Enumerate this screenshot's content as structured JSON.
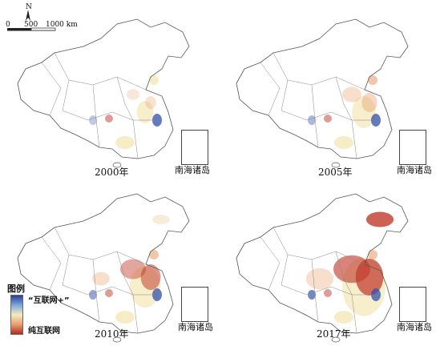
{
  "scale": {
    "north_label": "N",
    "ticks": [
      "0",
      "500",
      "1000 km"
    ]
  },
  "legend": {
    "title": "图例",
    "top_label": "“互联网+”",
    "bottom_label": "纯互联网",
    "colors": [
      "#2b3f9a",
      "#7fa8d8",
      "#f3ecc0",
      "#e8a070",
      "#b22a20"
    ]
  },
  "inset_label": "南海诸岛",
  "panels": [
    {
      "id": "p2000",
      "year": "2000年",
      "intensity": 0.2
    },
    {
      "id": "p2005",
      "year": "2005年",
      "intensity": 0.4
    },
    {
      "id": "p2010",
      "year": "2010年",
      "intensity": 0.6
    },
    {
      "id": "p2017",
      "year": "2017年",
      "intensity": 0.95
    }
  ]
}
